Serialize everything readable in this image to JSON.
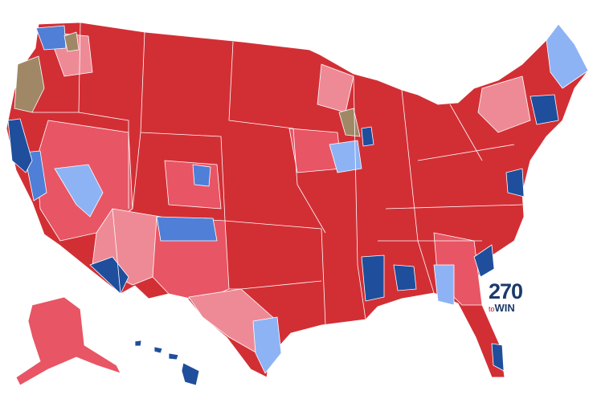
{
  "logo": {
    "number": "270",
    "prefix": "to",
    "word": "WIN"
  }
}
